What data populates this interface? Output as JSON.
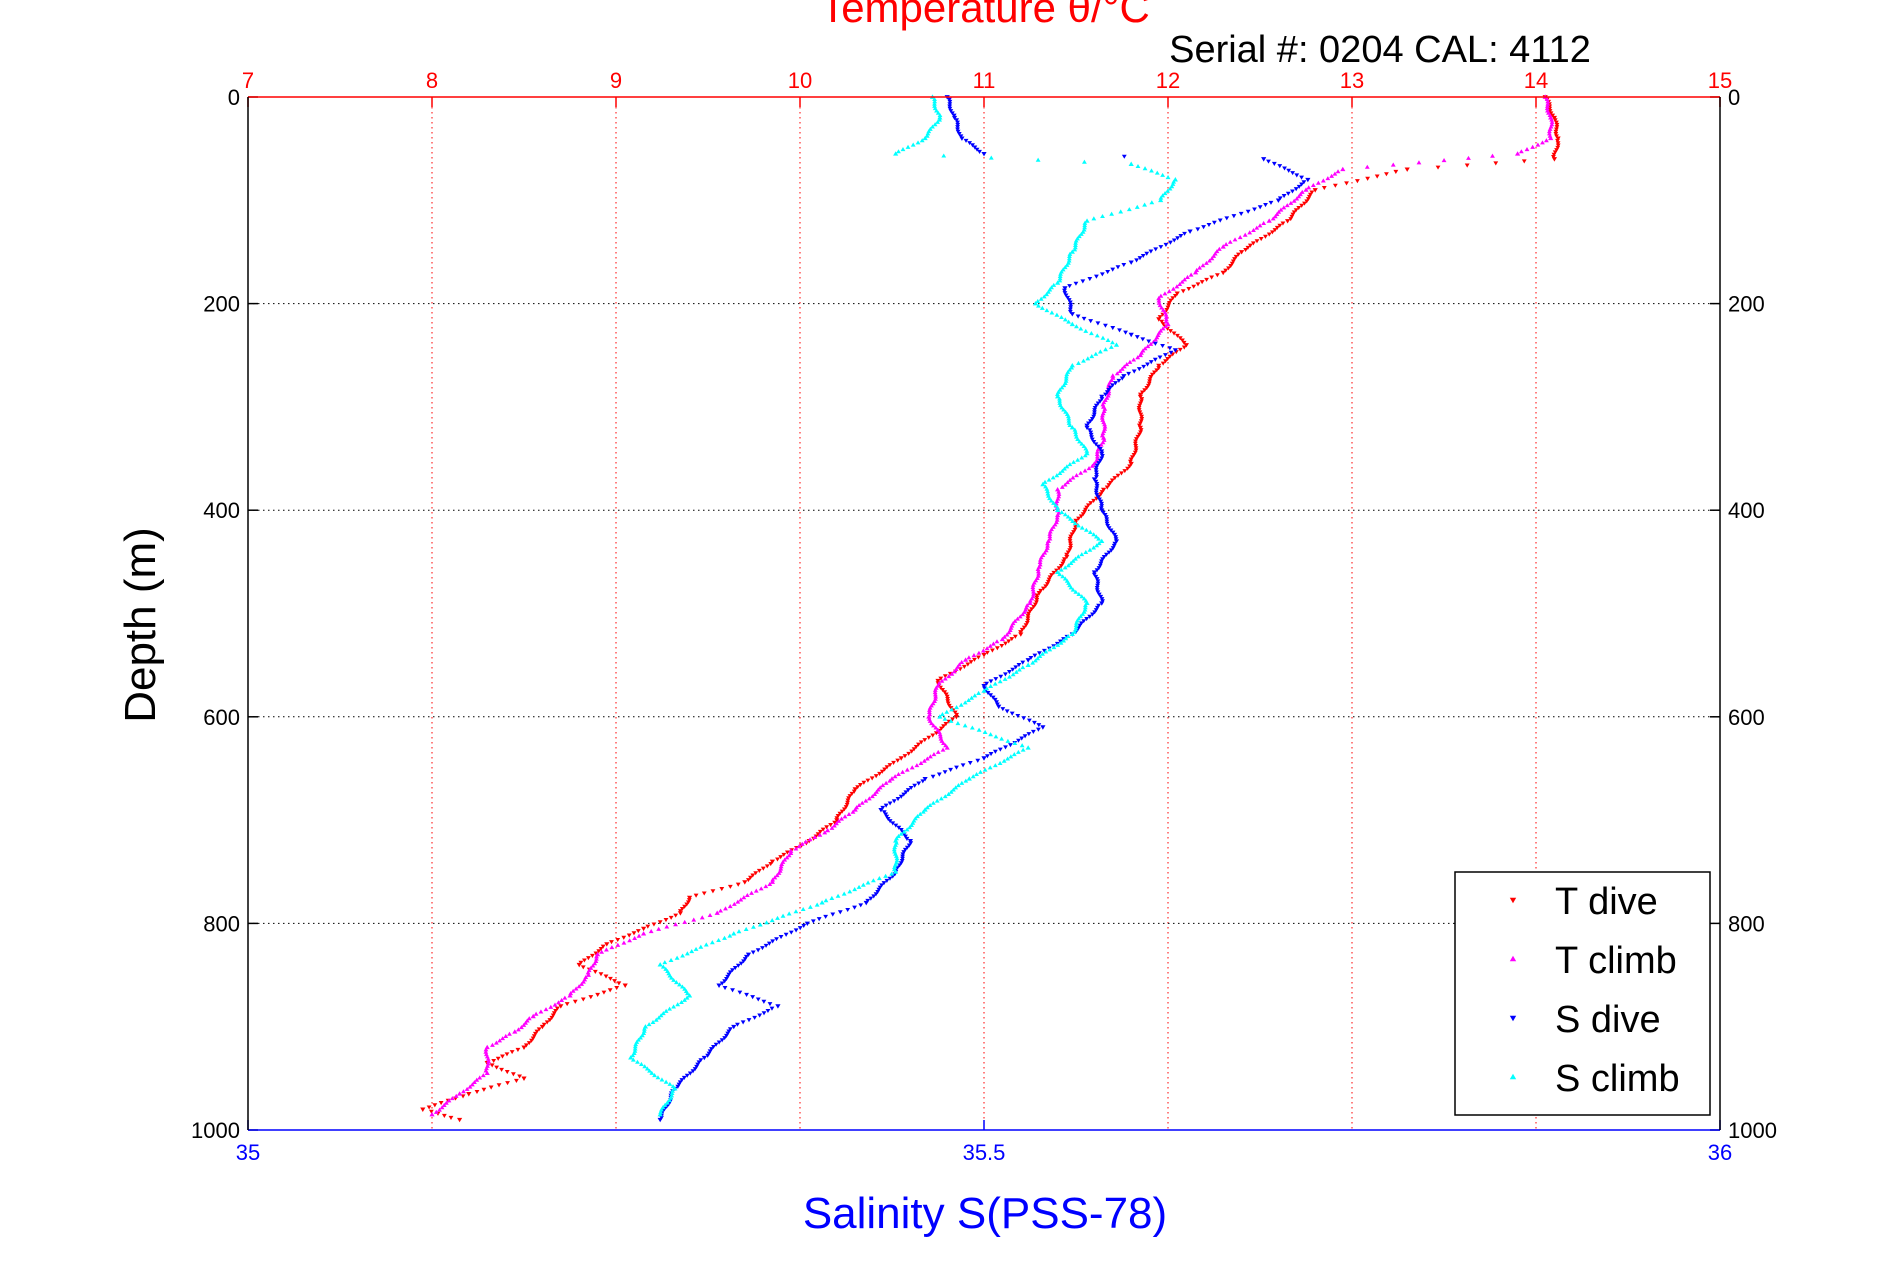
{
  "chart_data": {
    "type": "scatter",
    "title": "Temperature θ/°C",
    "subtitle": "Serial #: 0204  CAL: 4112",
    "xlabel_bottom": "Salinity S(PSS-78)",
    "xlabel_top": "Temperature θ/°C",
    "ylabel": "Depth (m)",
    "x_top_range": [
      7,
      15
    ],
    "x_top_ticks": [
      "7",
      "8",
      "9",
      "10",
      "11",
      "12",
      "13",
      "14",
      "15"
    ],
    "x_bottom_range": [
      35,
      36
    ],
    "x_bottom_ticks": [
      "35",
      "35.5",
      "36"
    ],
    "y_range": [
      0,
      1000
    ],
    "y_reversed": true,
    "y_ticks": [
      "0",
      "200",
      "400",
      "600",
      "800",
      "1000"
    ],
    "grid": true,
    "legend_position": "bottom-right",
    "colors": {
      "title": "#ff0000",
      "top_axis": "#ff0000",
      "bottom_axis": "#0000ff",
      "subtitle": "#000000"
    },
    "series": [
      {
        "name": "T dive",
        "axis": "top",
        "marker": "triangle-down",
        "color": "#ff0000",
        "points": [
          [
            14.05,
            0
          ],
          [
            14.1,
            20
          ],
          [
            14.12,
            40
          ],
          [
            14.1,
            60
          ],
          [
            13.3,
            70
          ],
          [
            12.8,
            90
          ],
          [
            12.65,
            120
          ],
          [
            12.4,
            150
          ],
          [
            12.3,
            170
          ],
          [
            12.05,
            190
          ],
          [
            11.95,
            215
          ],
          [
            12.1,
            240
          ],
          [
            11.95,
            260
          ],
          [
            11.85,
            290
          ],
          [
            11.85,
            320
          ],
          [
            11.8,
            355
          ],
          [
            11.65,
            380
          ],
          [
            11.5,
            410
          ],
          [
            11.45,
            445
          ],
          [
            11.3,
            480
          ],
          [
            11.2,
            520
          ],
          [
            11.0,
            540
          ],
          [
            10.75,
            565
          ],
          [
            10.85,
            600
          ],
          [
            10.55,
            640
          ],
          [
            10.3,
            670
          ],
          [
            10.2,
            700
          ],
          [
            10.05,
            720
          ],
          [
            9.85,
            740
          ],
          [
            9.7,
            760
          ],
          [
            9.4,
            775
          ],
          [
            9.35,
            790
          ],
          [
            9.15,
            805
          ],
          [
            8.95,
            820
          ],
          [
            8.8,
            840
          ],
          [
            9.05,
            860
          ],
          [
            8.7,
            880
          ],
          [
            8.6,
            900
          ],
          [
            8.5,
            920
          ],
          [
            8.3,
            935
          ],
          [
            8.5,
            950
          ],
          [
            8.2,
            965
          ],
          [
            7.95,
            980
          ],
          [
            8.15,
            990
          ]
        ]
      },
      {
        "name": "T climb",
        "axis": "top",
        "marker": "triangle-up",
        "color": "#ff00ff",
        "points": [
          [
            14.05,
            0
          ],
          [
            14.08,
            20
          ],
          [
            14.08,
            40
          ],
          [
            13.9,
            55
          ],
          [
            12.95,
            70
          ],
          [
            12.75,
            90
          ],
          [
            12.55,
            120
          ],
          [
            12.3,
            145
          ],
          [
            12.15,
            170
          ],
          [
            11.95,
            195
          ],
          [
            12.0,
            220
          ],
          [
            11.85,
            250
          ],
          [
            11.7,
            270
          ],
          [
            11.65,
            300
          ],
          [
            11.65,
            330
          ],
          [
            11.6,
            355
          ],
          [
            11.4,
            380
          ],
          [
            11.4,
            405
          ],
          [
            11.35,
            430
          ],
          [
            11.3,
            455
          ],
          [
            11.25,
            490
          ],
          [
            11.1,
            525
          ],
          [
            10.9,
            545
          ],
          [
            10.75,
            570
          ],
          [
            10.7,
            600
          ],
          [
            10.8,
            630
          ],
          [
            10.5,
            660
          ],
          [
            10.3,
            690
          ],
          [
            10.15,
            710
          ],
          [
            9.95,
            730
          ],
          [
            9.85,
            760
          ],
          [
            9.55,
            790
          ],
          [
            9.15,
            810
          ],
          [
            8.9,
            830
          ],
          [
            8.85,
            850
          ],
          [
            8.75,
            870
          ],
          [
            8.55,
            890
          ],
          [
            8.45,
            905
          ],
          [
            8.3,
            920
          ],
          [
            8.3,
            945
          ],
          [
            8.15,
            965
          ],
          [
            8.0,
            985
          ]
        ]
      },
      {
        "name": "S dive",
        "axis": "bottom",
        "marker": "triangle-down",
        "color": "#0000ff",
        "points": [
          [
            35.475,
            0
          ],
          [
            35.48,
            20
          ],
          [
            35.485,
            40
          ],
          [
            35.5,
            55
          ],
          [
            35.69,
            60
          ],
          [
            35.72,
            80
          ],
          [
            35.7,
            100
          ],
          [
            35.64,
            130
          ],
          [
            35.6,
            160
          ],
          [
            35.555,
            185
          ],
          [
            35.56,
            210
          ],
          [
            35.6,
            230
          ],
          [
            35.63,
            245
          ],
          [
            35.595,
            270
          ],
          [
            35.58,
            290
          ],
          [
            35.57,
            320
          ],
          [
            35.58,
            345
          ],
          [
            35.575,
            370
          ],
          [
            35.58,
            400
          ],
          [
            35.59,
            430
          ],
          [
            35.575,
            460
          ],
          [
            35.58,
            490
          ],
          [
            35.56,
            520
          ],
          [
            35.53,
            545
          ],
          [
            35.5,
            570
          ],
          [
            35.51,
            590
          ],
          [
            35.54,
            610
          ],
          [
            35.5,
            640
          ],
          [
            35.46,
            660
          ],
          [
            35.43,
            690
          ],
          [
            35.45,
            720
          ],
          [
            35.44,
            750
          ],
          [
            35.42,
            780
          ],
          [
            35.38,
            800
          ],
          [
            35.34,
            830
          ],
          [
            35.32,
            860
          ],
          [
            35.36,
            880
          ],
          [
            35.33,
            900
          ],
          [
            35.31,
            930
          ],
          [
            35.29,
            960
          ],
          [
            35.28,
            990
          ]
        ]
      },
      {
        "name": "S climb",
        "axis": "bottom",
        "marker": "triangle-up",
        "color": "#00ffff",
        "points": [
          [
            35.465,
            0
          ],
          [
            35.47,
            20
          ],
          [
            35.46,
            40
          ],
          [
            35.44,
            55
          ],
          [
            35.6,
            65
          ],
          [
            35.63,
            80
          ],
          [
            35.62,
            100
          ],
          [
            35.57,
            120
          ],
          [
            35.56,
            150
          ],
          [
            35.55,
            180
          ],
          [
            35.535,
            200
          ],
          [
            35.56,
            220
          ],
          [
            35.59,
            240
          ],
          [
            35.56,
            260
          ],
          [
            35.55,
            290
          ],
          [
            35.56,
            320
          ],
          [
            35.57,
            345
          ],
          [
            35.54,
            375
          ],
          [
            35.55,
            400
          ],
          [
            35.58,
            430
          ],
          [
            35.55,
            460
          ],
          [
            35.57,
            490
          ],
          [
            35.56,
            520
          ],
          [
            35.53,
            550
          ],
          [
            35.5,
            575
          ],
          [
            35.47,
            600
          ],
          [
            35.53,
            630
          ],
          [
            35.49,
            660
          ],
          [
            35.46,
            690
          ],
          [
            35.44,
            720
          ],
          [
            35.44,
            750
          ],
          [
            35.39,
            780
          ],
          [
            35.33,
            810
          ],
          [
            35.28,
            840
          ],
          [
            35.3,
            870
          ],
          [
            35.27,
            900
          ],
          [
            35.26,
            930
          ],
          [
            35.29,
            960
          ],
          [
            35.28,
            985
          ]
        ]
      }
    ]
  }
}
